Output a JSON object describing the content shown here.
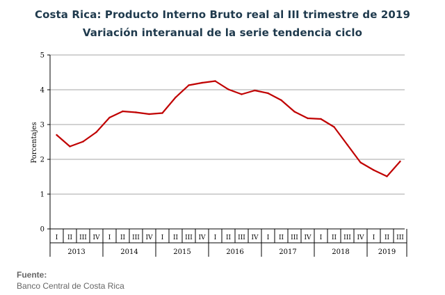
{
  "header": {
    "title": "Costa Rica: Producto Interno Bruto real al III trimestre de 2019",
    "subtitle": "Variación interanual de la serie tendencia ciclo"
  },
  "chart_data": {
    "type": "line",
    "title": "Costa Rica: Producto Interno Bruto real al III trimestre de 2019",
    "subtitle": "Variación interanual de la serie tendencia ciclo",
    "xlabel": "",
    "ylabel": "Porcentajes",
    "ylim": [
      0,
      5
    ],
    "yticks": [
      0,
      1,
      2,
      3,
      4,
      5
    ],
    "grid": true,
    "legend": "none",
    "line_color": "#c00000",
    "years": [
      "2013",
      "2014",
      "2015",
      "2016",
      "2017",
      "2018",
      "2019"
    ],
    "quarters": [
      "I",
      "II",
      "III",
      "IV",
      "I",
      "II",
      "III",
      "IV",
      "I",
      "II",
      "III",
      "IV",
      "I",
      "II",
      "III",
      "IV",
      "I",
      "II",
      "III",
      "IV",
      "I",
      "II",
      "III",
      "IV",
      "I",
      "II",
      "III"
    ],
    "series": [
      {
        "values": [
          2.7,
          2.37,
          2.51,
          2.78,
          3.2,
          3.38,
          3.35,
          3.3,
          3.33,
          3.78,
          4.13,
          4.2,
          4.25,
          4.01,
          3.87,
          3.98,
          3.9,
          3.7,
          3.37,
          3.18,
          3.16,
          2.93,
          2.42,
          1.91,
          1.69,
          1.51,
          1.94
        ]
      }
    ]
  },
  "source": {
    "heading": "Fuente:",
    "text": "Banco Central de Costa Rica"
  }
}
